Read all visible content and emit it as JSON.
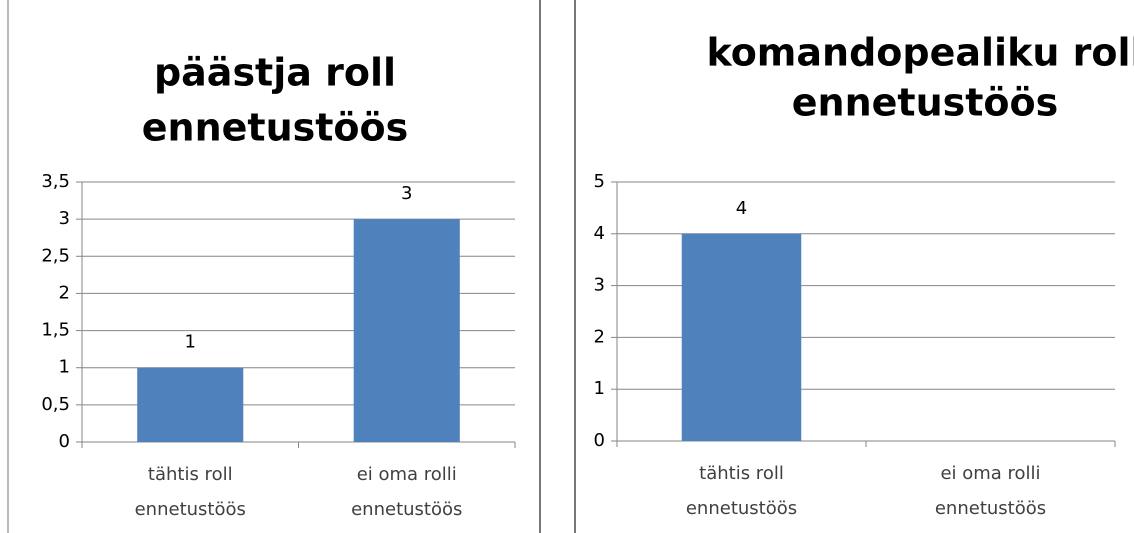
{
  "chart_data": [
    {
      "type": "bar",
      "title": [
        "päästja roll",
        "ennetustöös"
      ],
      "categories": [
        [
          "tähtis roll",
          "ennetustöös"
        ],
        [
          "ei oma rolli",
          "ennetustöös"
        ]
      ],
      "values": [
        1,
        3
      ],
      "color": "#4f81bd",
      "ylim": [
        0,
        3.5
      ],
      "yticks": [
        0,
        {
          "value": 0.5,
          "label": "0,5"
        },
        1,
        {
          "value": 1.5,
          "label": "1,5"
        },
        2,
        {
          "value": 2.5,
          "label": "2,5"
        },
        3,
        {
          "value": 3.5,
          "label": "3,5"
        }
      ],
      "grid": true
    },
    {
      "type": "bar",
      "title": [
        "komandopealiku  roll",
        "ennetustöös"
      ],
      "categories": [
        [
          "tähtis roll",
          "ennetustöös"
        ],
        [
          "ei oma rolli",
          "ennetustöös"
        ]
      ],
      "values": [
        4,
        0
      ],
      "value_labels": [
        "4",
        null
      ],
      "color": "#4f81bd",
      "ylim": [
        0,
        5
      ],
      "yticks": [
        0,
        1,
        2,
        3,
        4,
        5
      ],
      "grid": true
    }
  ]
}
